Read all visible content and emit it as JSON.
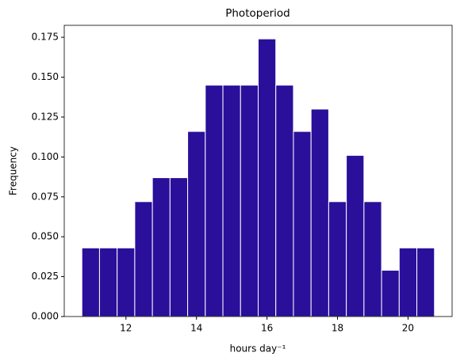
{
  "chart_data": {
    "type": "histogram",
    "title": "Photoperiod",
    "xlabel": "hours day⁻¹",
    "ylabel": "Frequency",
    "bins": [
      10.75,
      11.25,
      11.75,
      12.25,
      12.75,
      13.25,
      13.75,
      14.25,
      14.75,
      15.25,
      15.75,
      16.25,
      16.75,
      17.25,
      17.75,
      18.25,
      18.75,
      19.25,
      19.75,
      20.25,
      20.75
    ],
    "values": [
      0.043,
      0.043,
      0.043,
      0.072,
      0.087,
      0.087,
      0.116,
      0.145,
      0.145,
      0.145,
      0.174,
      0.145,
      0.116,
      0.13,
      0.072,
      0.101,
      0.072,
      0.029,
      0.043,
      0.043
    ],
    "color": "#2a0f9b",
    "edgecolor": "#ffffff",
    "xlim": [
      10.25,
      21.25
    ],
    "xticks": [
      12,
      14,
      16,
      18,
      20
    ],
    "ylim": [
      0,
      0.1825
    ],
    "yticks": [
      {
        "value": 0,
        "label": "0.000"
      },
      {
        "value": 0.025,
        "label": "0.025"
      },
      {
        "value": 0.05,
        "label": "0.050"
      },
      {
        "value": 0.075,
        "label": "0.075"
      },
      {
        "value": 0.1,
        "label": "0.100"
      },
      {
        "value": 0.125,
        "label": "0.125"
      },
      {
        "value": 0.15,
        "label": "0.150"
      },
      {
        "value": 0.175,
        "label": "0.175"
      }
    ],
    "grid": false
  }
}
